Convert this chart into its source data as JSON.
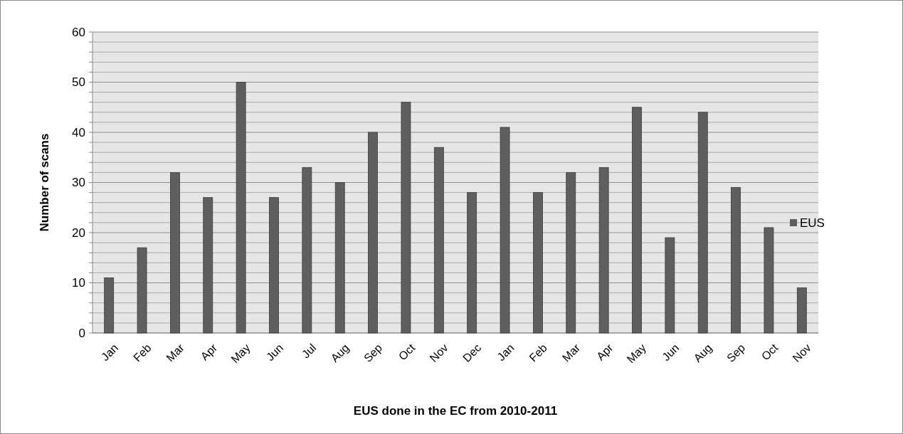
{
  "chart_data": {
    "type": "bar",
    "xlabel": "EUS done in the EC from 2010-2011",
    "ylabel": "Number of scans",
    "categories": [
      "Jan",
      "Feb",
      "Mar",
      "Apr",
      "May",
      "Jun",
      "Jul",
      "Aug",
      "Sep",
      "Oct",
      "Nov",
      "Dec",
      "Jan",
      "Feb",
      "Mar",
      "Apr",
      "May",
      "Jun",
      "Aug",
      "Sep",
      "Oct",
      "Nov"
    ],
    "series": [
      {
        "name": "EUS",
        "color": "#5f5f5f",
        "values": [
          11,
          17,
          32,
          27,
          50,
          27,
          33,
          30,
          40,
          46,
          37,
          28,
          41,
          28,
          32,
          33,
          45,
          19,
          44,
          29,
          21,
          9
        ]
      }
    ],
    "ylim": [
      0,
      60
    ],
    "yticks": [
      0,
      {
        "value": 2,
        "label": null
      },
      {
        "value": 4,
        "label": null
      },
      {
        "value": 6,
        "label": null
      },
      {
        "value": 8,
        "label": null
      },
      10,
      {
        "value": 12,
        "label": null
      },
      {
        "value": 14,
        "label": null
      },
      {
        "value": 16,
        "label": null
      },
      {
        "value": 18,
        "label": null
      },
      20,
      {
        "value": 22,
        "label": null
      },
      {
        "value": 24,
        "label": null
      },
      {
        "value": 26,
        "label": null
      },
      {
        "value": 28,
        "label": null
      },
      30,
      {
        "value": 32,
        "label": null
      },
      {
        "value": 34,
        "label": null
      },
      {
        "value": 36,
        "label": null
      },
      {
        "value": 38,
        "label": null
      },
      40,
      {
        "value": 42,
        "label": null
      },
      {
        "value": 44,
        "label": null
      },
      {
        "value": 46,
        "label": null
      },
      {
        "value": 48,
        "label": null
      },
      50,
      {
        "value": 52,
        "label": null
      },
      {
        "value": 54,
        "label": null
      },
      {
        "value": 56,
        "label": null
      },
      {
        "value": 58,
        "label": null
      },
      60
    ],
    "grid": "y",
    "legend": "right"
  }
}
